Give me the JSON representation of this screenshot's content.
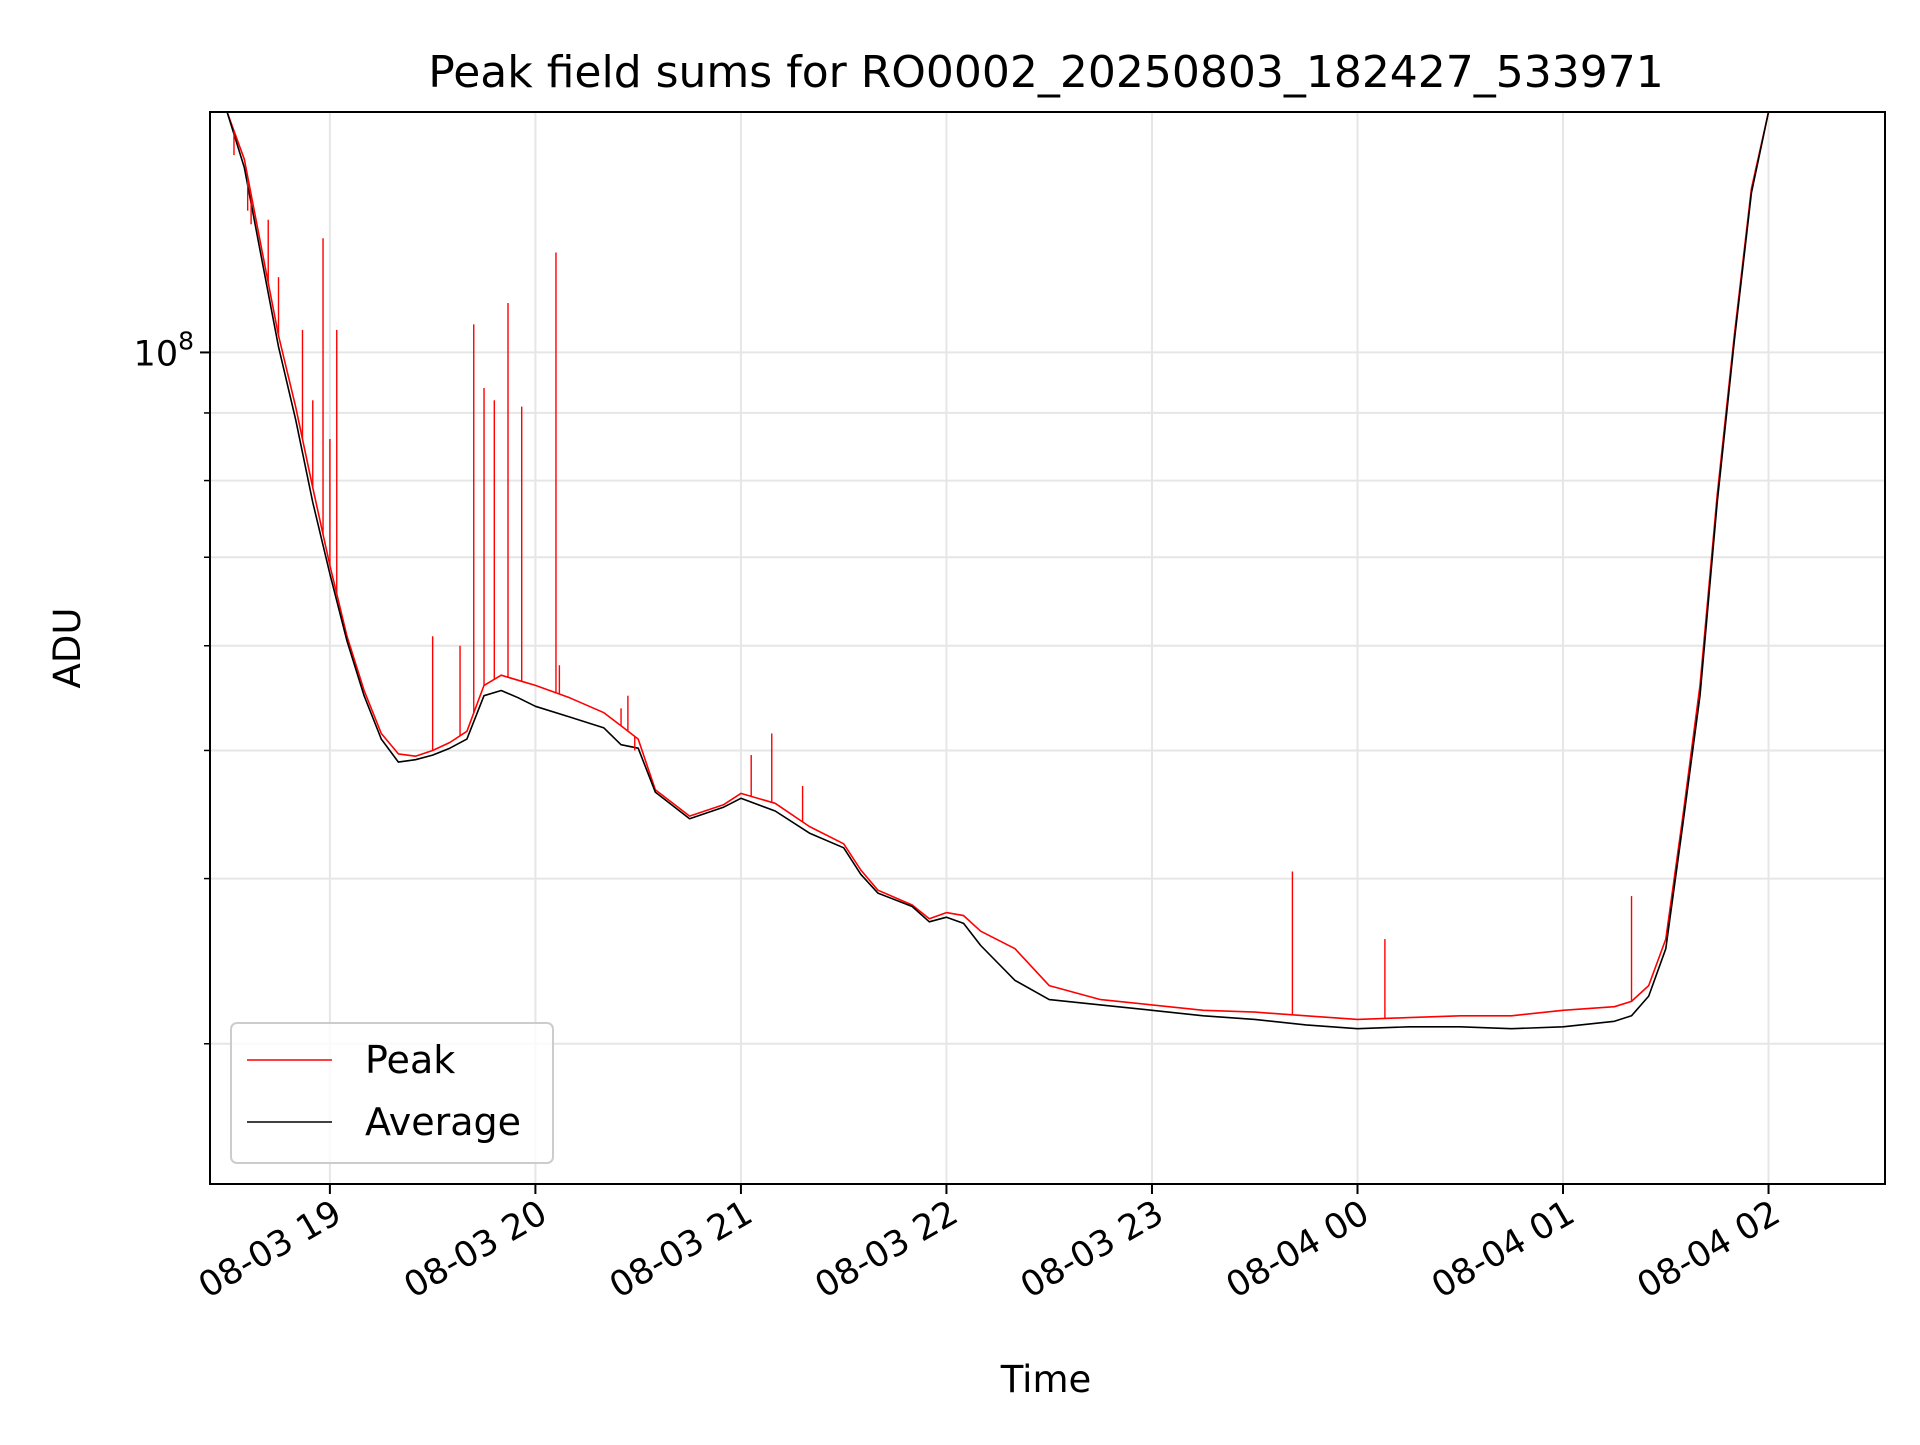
{
  "chart_data": {
    "type": "line",
    "title": "Peak field sums for RO0002_20250803_182427_533971",
    "xlabel": "Time",
    "ylabel": "ADU",
    "y_scale": "log",
    "grid": true,
    "legend_position": "lower-left",
    "xlim": [
      "2025-08-03 18:25",
      "2025-08-04 02:34"
    ],
    "ylim": [
      23500000,
      152000000
    ],
    "x_ticks": [
      "08-03 19",
      "08-03 20",
      "08-03 21",
      "08-03 22",
      "08-03 23",
      "08-04 00",
      "08-04 01",
      "08-04 02"
    ],
    "y_tick_labels": [
      {
        "base": "10",
        "exponent": "8"
      }
    ],
    "y_major_ticks": [
      100000000
    ],
    "y_minor_ticks": [
      30000000,
      40000000,
      50000000,
      60000000,
      70000000,
      80000000,
      90000000,
      200000000
    ],
    "series": [
      {
        "name": "Peak",
        "color": "#ff0000",
        "x": [
          "2025-08-03 18:25",
          "2025-08-03 18:30",
          "2025-08-03 18:35",
          "2025-08-03 18:40",
          "2025-08-03 18:45",
          "2025-08-03 18:50",
          "2025-08-03 18:55",
          "2025-08-03 19:00",
          "2025-08-03 19:05",
          "2025-08-03 19:10",
          "2025-08-03 19:15",
          "2025-08-03 19:20",
          "2025-08-03 19:25",
          "2025-08-03 19:30",
          "2025-08-03 19:35",
          "2025-08-03 19:40",
          "2025-08-03 19:45",
          "2025-08-03 19:50",
          "2025-08-03 19:55",
          "2025-08-03 20:00",
          "2025-08-03 20:10",
          "2025-08-03 20:20",
          "2025-08-03 20:25",
          "2025-08-03 20:30",
          "2025-08-03 20:35",
          "2025-08-03 20:45",
          "2025-08-03 20:55",
          "2025-08-03 21:00",
          "2025-08-03 21:10",
          "2025-08-03 21:20",
          "2025-08-03 21:30",
          "2025-08-03 21:35",
          "2025-08-03 21:40",
          "2025-08-03 21:50",
          "2025-08-03 21:55",
          "2025-08-03 22:00",
          "2025-08-03 22:05",
          "2025-08-03 22:10",
          "2025-08-03 22:20",
          "2025-08-03 22:30",
          "2025-08-03 22:45",
          "2025-08-03 23:00",
          "2025-08-03 23:15",
          "2025-08-03 23:30",
          "2025-08-03 23:45",
          "2025-08-04 00:00",
          "2025-08-04 00:15",
          "2025-08-04 00:30",
          "2025-08-04 00:45",
          "2025-08-04 01:00",
          "2025-08-04 01:15",
          "2025-08-04 01:20",
          "2025-08-04 01:25",
          "2025-08-04 01:30",
          "2025-08-04 01:35",
          "2025-08-04 01:40",
          "2025-08-04 01:45",
          "2025-08-04 01:50",
          "2025-08-04 01:55",
          "2025-08-04 02:00",
          "2025-08-04 02:05",
          "2025-08-04 02:10",
          "2025-08-04 02:15",
          "2025-08-04 02:20"
        ],
        "values": [
          152000000,
          152000000,
          140000000,
          120000000,
          103000000,
          91000000,
          79000000,
          69000000,
          61000000,
          55500000,
          51500000,
          49700000,
          49500000,
          50000000,
          50700000,
          51700000,
          56000000,
          57000000,
          56500000,
          56000000,
          54800000,
          53400000,
          52200000,
          51000000,
          46700000,
          44600000,
          45500000,
          46400000,
          45600000,
          43800000,
          42500000,
          40600000,
          39200000,
          38200000,
          37300000,
          37700000,
          37500000,
          36500000,
          35400000,
          33200000,
          32400000,
          32100000,
          31800000,
          31700000,
          31500000,
          31300000,
          31400000,
          31500000,
          31500000,
          31800000,
          32000000,
          32300000,
          33200000,
          36000000,
          44600000,
          56000000,
          78000000,
          103000000,
          133000000,
          152000000,
          152000000,
          152000000,
          152000000,
          152000000
        ]
      },
      {
        "name": "Average",
        "color": "#000000",
        "x": [
          "2025-08-03 18:25",
          "2025-08-03 18:30",
          "2025-08-03 18:35",
          "2025-08-03 18:40",
          "2025-08-03 18:45",
          "2025-08-03 18:50",
          "2025-08-03 18:55",
          "2025-08-03 19:00",
          "2025-08-03 19:05",
          "2025-08-03 19:10",
          "2025-08-03 19:15",
          "2025-08-03 19:20",
          "2025-08-03 19:25",
          "2025-08-03 19:30",
          "2025-08-03 19:35",
          "2025-08-03 19:40",
          "2025-08-03 19:45",
          "2025-08-03 19:50",
          "2025-08-03 19:55",
          "2025-08-03 20:00",
          "2025-08-03 20:10",
          "2025-08-03 20:20",
          "2025-08-03 20:25",
          "2025-08-03 20:30",
          "2025-08-03 20:35",
          "2025-08-03 20:45",
          "2025-08-03 20:55",
          "2025-08-03 21:00",
          "2025-08-03 21:10",
          "2025-08-03 21:20",
          "2025-08-03 21:30",
          "2025-08-03 21:35",
          "2025-08-03 21:40",
          "2025-08-03 21:50",
          "2025-08-03 21:55",
          "2025-08-03 22:00",
          "2025-08-03 22:05",
          "2025-08-03 22:10",
          "2025-08-03 22:20",
          "2025-08-03 22:30",
          "2025-08-03 22:45",
          "2025-08-03 23:00",
          "2025-08-03 23:15",
          "2025-08-03 23:30",
          "2025-08-03 23:45",
          "2025-08-04 00:00",
          "2025-08-04 00:15",
          "2025-08-04 00:30",
          "2025-08-04 00:45",
          "2025-08-04 01:00",
          "2025-08-04 01:15",
          "2025-08-04 01:20",
          "2025-08-04 01:25",
          "2025-08-04 01:30",
          "2025-08-04 01:35",
          "2025-08-04 01:40",
          "2025-08-04 01:45",
          "2025-08-04 01:50",
          "2025-08-04 01:55",
          "2025-08-04 02:00",
          "2025-08-04 02:05",
          "2025-08-04 02:10",
          "2025-08-04 02:15",
          "2025-08-04 02:20"
        ],
        "values": [
          152000000,
          152000000,
          138000000,
          118000000,
          101000000,
          89000000,
          77000000,
          68000000,
          60500000,
          55000000,
          51000000,
          49000000,
          49200000,
          49600000,
          50200000,
          51000000,
          55000000,
          55500000,
          54800000,
          54000000,
          53000000,
          52000000,
          50500000,
          50200000,
          46500000,
          44400000,
          45300000,
          46000000,
          45000000,
          43300000,
          42200000,
          40300000,
          39000000,
          38100000,
          37100000,
          37400000,
          37000000,
          35600000,
          33500000,
          32400000,
          32100000,
          31800000,
          31500000,
          31300000,
          31000000,
          30800000,
          30900000,
          30900000,
          30800000,
          30900000,
          31200000,
          31500000,
          32600000,
          35400000,
          44000000,
          55000000,
          77000000,
          102000000,
          132000000,
          152000000,
          152000000,
          152000000,
          152000000,
          152000000
        ]
      }
    ],
    "annotations": {
      "spikes_peak": [
        {
          "x": "2025-08-03 18:32",
          "y": 141000000
        },
        {
          "x": "2025-08-03 18:36",
          "y": 128000000
        },
        {
          "x": "2025-08-03 18:37",
          "y": 125000000
        },
        {
          "x": "2025-08-03 18:42",
          "y": 126000000
        },
        {
          "x": "2025-08-03 18:45",
          "y": 114000000
        },
        {
          "x": "2025-08-03 18:52",
          "y": 104000000
        },
        {
          "x": "2025-08-03 18:55",
          "y": 92000000
        },
        {
          "x": "2025-08-03 18:58",
          "y": 122000000
        },
        {
          "x": "2025-08-03 19:00",
          "y": 86000000
        },
        {
          "x": "2025-08-03 19:02",
          "y": 104000000
        },
        {
          "x": "2025-08-03 19:30",
          "y": 61000000
        },
        {
          "x": "2025-08-03 19:38",
          "y": 60000000
        },
        {
          "x": "2025-08-03 19:42",
          "y": 105000000
        },
        {
          "x": "2025-08-03 19:45",
          "y": 94000000
        },
        {
          "x": "2025-08-03 19:48",
          "y": 92000000
        },
        {
          "x": "2025-08-03 19:52",
          "y": 109000000
        },
        {
          "x": "2025-08-03 19:56",
          "y": 91000000
        },
        {
          "x": "2025-08-03 20:06",
          "y": 119000000
        },
        {
          "x": "2025-08-03 20:07",
          "y": 58000000
        },
        {
          "x": "2025-08-03 20:25",
          "y": 53800000
        },
        {
          "x": "2025-08-03 20:27",
          "y": 55000000
        },
        {
          "x": "2025-08-03 20:29",
          "y": 50000000
        },
        {
          "x": "2025-08-03 21:03",
          "y": 49600000
        },
        {
          "x": "2025-08-03 21:09",
          "y": 51500000
        },
        {
          "x": "2025-08-03 21:18",
          "y": 47000000
        },
        {
          "x": "2025-08-03 23:41",
          "y": 40500000
        },
        {
          "x": "2025-08-04 00:08",
          "y": 36000000
        },
        {
          "x": "2025-08-04 01:20",
          "y": 38800000
        }
      ]
    }
  },
  "legend": {
    "items": [
      {
        "label": "Peak",
        "color": "#ff0000"
      },
      {
        "label": "Average",
        "color": "#000000"
      }
    ]
  }
}
